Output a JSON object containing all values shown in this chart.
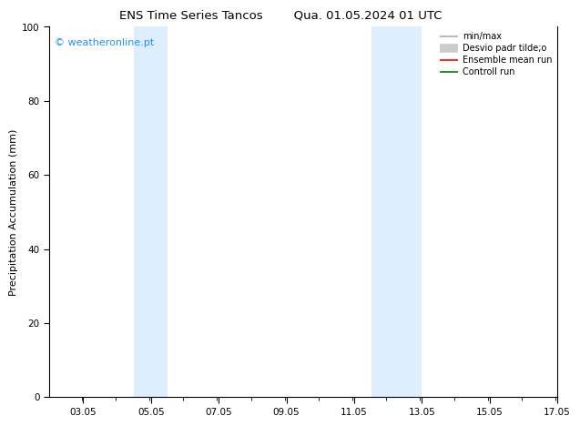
{
  "title_left": "ENS Time Series Tancos",
  "title_right": "Qua. 01.05.2024 01 UTC",
  "ylabel": "Precipitation Accumulation (mm)",
  "xlim": [
    2.05,
    17.05
  ],
  "ylim": [
    0,
    100
  ],
  "yticks": [
    0,
    20,
    40,
    60,
    80,
    100
  ],
  "xtick_labels": [
    "03.05",
    "05.05",
    "07.05",
    "09.05",
    "11.05",
    "13.05",
    "15.05",
    "17.05"
  ],
  "xtick_positions": [
    3.05,
    5.05,
    7.05,
    9.05,
    11.05,
    13.05,
    15.05,
    17.05
  ],
  "shaded_bands": [
    {
      "xmin": 4.55,
      "xmax": 5.55
    },
    {
      "xmin": 11.55,
      "xmax": 13.05
    }
  ],
  "band_color": "#ddeeff",
  "watermark_text": "© weatheronline.pt",
  "watermark_color": "#1e90ff",
  "legend_entries": [
    {
      "label": "min/max",
      "color": "#aaaaaa",
      "lw": 1.2
    },
    {
      "label": "Desvio padr tilde;o",
      "color": "#cccccc",
      "lw": 7
    },
    {
      "label": "Ensemble mean run",
      "color": "#ff0000",
      "lw": 1.2
    },
    {
      "label": "Controll run",
      "color": "#008000",
      "lw": 1.2
    }
  ],
  "bg_color": "#ffffff",
  "title_fontsize": 9.5,
  "label_fontsize": 8,
  "tick_fontsize": 7.5,
  "watermark_fontsize": 8,
  "legend_fontsize": 7
}
